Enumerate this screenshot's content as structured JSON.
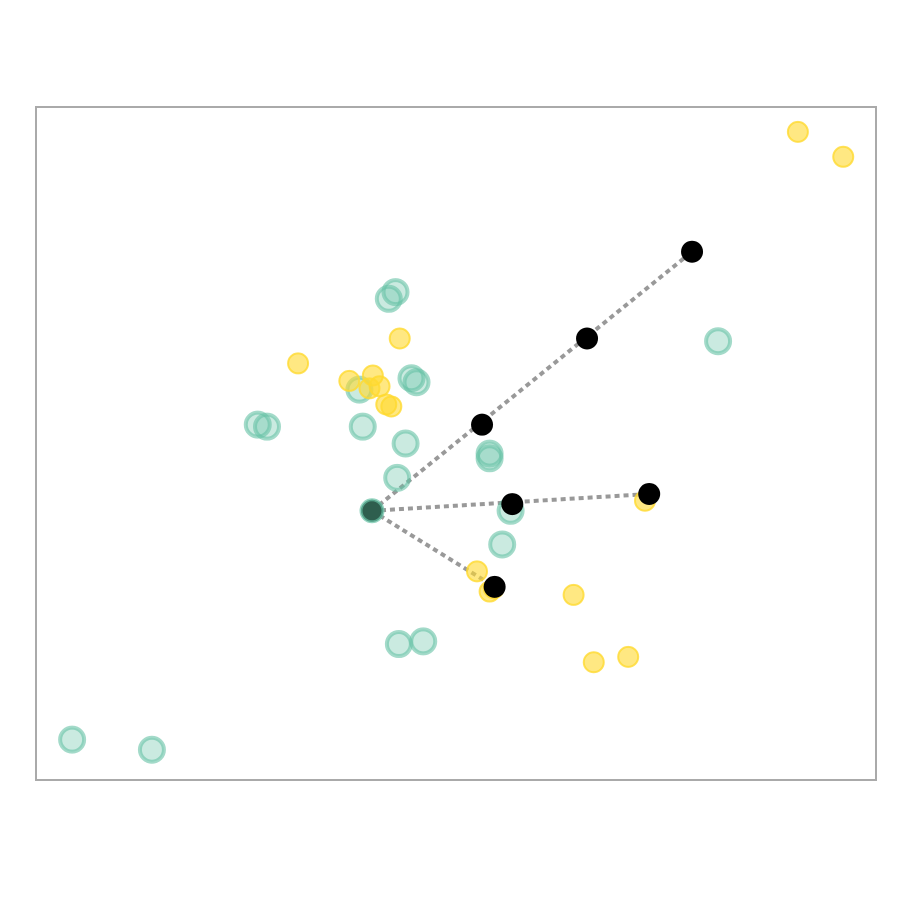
{
  "chart_data": {
    "type": "scatter",
    "title": "",
    "xlabel": "",
    "ylabel": "",
    "xlim": [
      0,
      100
    ],
    "ylim": [
      0,
      100
    ],
    "grid": false,
    "axes_ticks": false,
    "colors": {
      "green": "#66c2a5",
      "yellow": "#ffd92f",
      "black": "#000000",
      "line": "#999999",
      "frame": "#aaaaaa"
    },
    "series": [
      {
        "color_key": "green",
        "style": "ring",
        "points": [
          [
            4.3,
            6.0
          ],
          [
            13.8,
            4.5
          ],
          [
            42.0,
            71.5
          ],
          [
            42.8,
            72.5
          ],
          [
            38.9,
            52.5
          ],
          [
            44.7,
            59.7
          ],
          [
            45.3,
            59.1
          ],
          [
            26.4,
            52.8
          ],
          [
            27.5,
            52.5
          ],
          [
            38.5,
            58.0
          ],
          [
            44.0,
            50.0
          ],
          [
            54.0,
            48.5
          ],
          [
            54.0,
            47.8
          ],
          [
            43.0,
            44.9
          ],
          [
            56.5,
            40.0
          ],
          [
            55.5,
            35.0
          ],
          [
            43.2,
            20.2
          ],
          [
            46.1,
            20.6
          ],
          [
            81.2,
            65.2
          ]
        ]
      },
      {
        "color_key": "yellow",
        "style": "filled",
        "points": [
          [
            90.7,
            96.3
          ],
          [
            96.1,
            92.6
          ],
          [
            43.3,
            65.6
          ],
          [
            31.2,
            61.9
          ],
          [
            37.3,
            59.3
          ],
          [
            40.1,
            60.1
          ],
          [
            40.9,
            58.5
          ],
          [
            39.7,
            58.2
          ],
          [
            41.7,
            55.8
          ],
          [
            42.3,
            55.5
          ],
          [
            52.5,
            31.0
          ],
          [
            54.5,
            28.5
          ],
          [
            54.0,
            28.0
          ],
          [
            64.0,
            27.5
          ],
          [
            66.4,
            17.5
          ],
          [
            70.5,
            18.3
          ],
          [
            72.5,
            41.5
          ]
        ]
      },
      {
        "color_key": "black",
        "style": "center",
        "points": [
          [
            40.0,
            40.0
          ],
          [
            53.1,
            52.8
          ],
          [
            65.6,
            65.6
          ],
          [
            78.1,
            78.5
          ],
          [
            56.7,
            41.0
          ],
          [
            73.0,
            42.5
          ],
          [
            54.6,
            28.7
          ]
        ]
      }
    ],
    "connections": [
      [
        [
          40.0,
          40.0
        ],
        [
          78.1,
          78.5
        ]
      ],
      [
        [
          40.0,
          40.0
        ],
        [
          73.0,
          42.5
        ]
      ],
      [
        [
          40.0,
          40.0
        ],
        [
          54.6,
          28.7
        ]
      ]
    ],
    "origin_point": [
      40.0,
      40.0
    ]
  }
}
